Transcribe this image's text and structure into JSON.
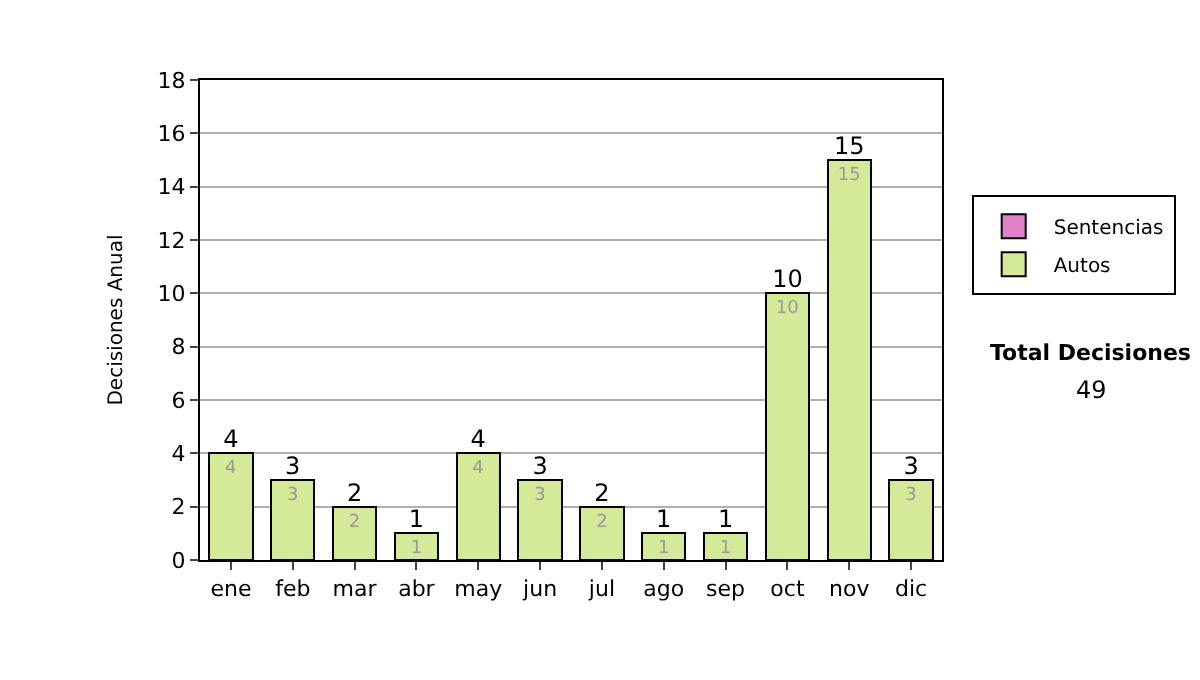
{
  "chart_data": {
    "type": "bar",
    "ylabel": "Decisiones Anual",
    "categories": [
      "ene",
      "feb",
      "mar",
      "abr",
      "may",
      "jun",
      "jul",
      "ago",
      "sep",
      "oct",
      "nov",
      "dic"
    ],
    "series": [
      {
        "name": "Sentencias",
        "color": "#e080c8",
        "values": [
          0,
          0,
          0,
          0,
          0,
          0,
          0,
          0,
          0,
          0,
          0,
          0
        ]
      },
      {
        "name": "Autos",
        "color": "#d4ea98",
        "values": [
          4,
          3,
          2,
          1,
          4,
          3,
          2,
          1,
          1,
          10,
          15,
          3
        ],
        "value_labels": [
          "4",
          "3",
          "2",
          "1",
          "4",
          "3",
          "2",
          "1",
          "1",
          "10",
          "15",
          "3"
        ]
      }
    ],
    "stacked": true,
    "totals": [
      "4",
      "3",
      "2",
      "1",
      "4",
      "3",
      "2",
      "1",
      "1",
      "10",
      "15",
      "3"
    ],
    "ylim": [
      0,
      18
    ],
    "yticks": [
      0,
      2,
      4,
      6,
      8,
      10,
      12,
      14,
      16,
      18
    ],
    "grid": "y",
    "legend": "right",
    "annotations": [
      "Total Decisiones",
      "49"
    ]
  }
}
